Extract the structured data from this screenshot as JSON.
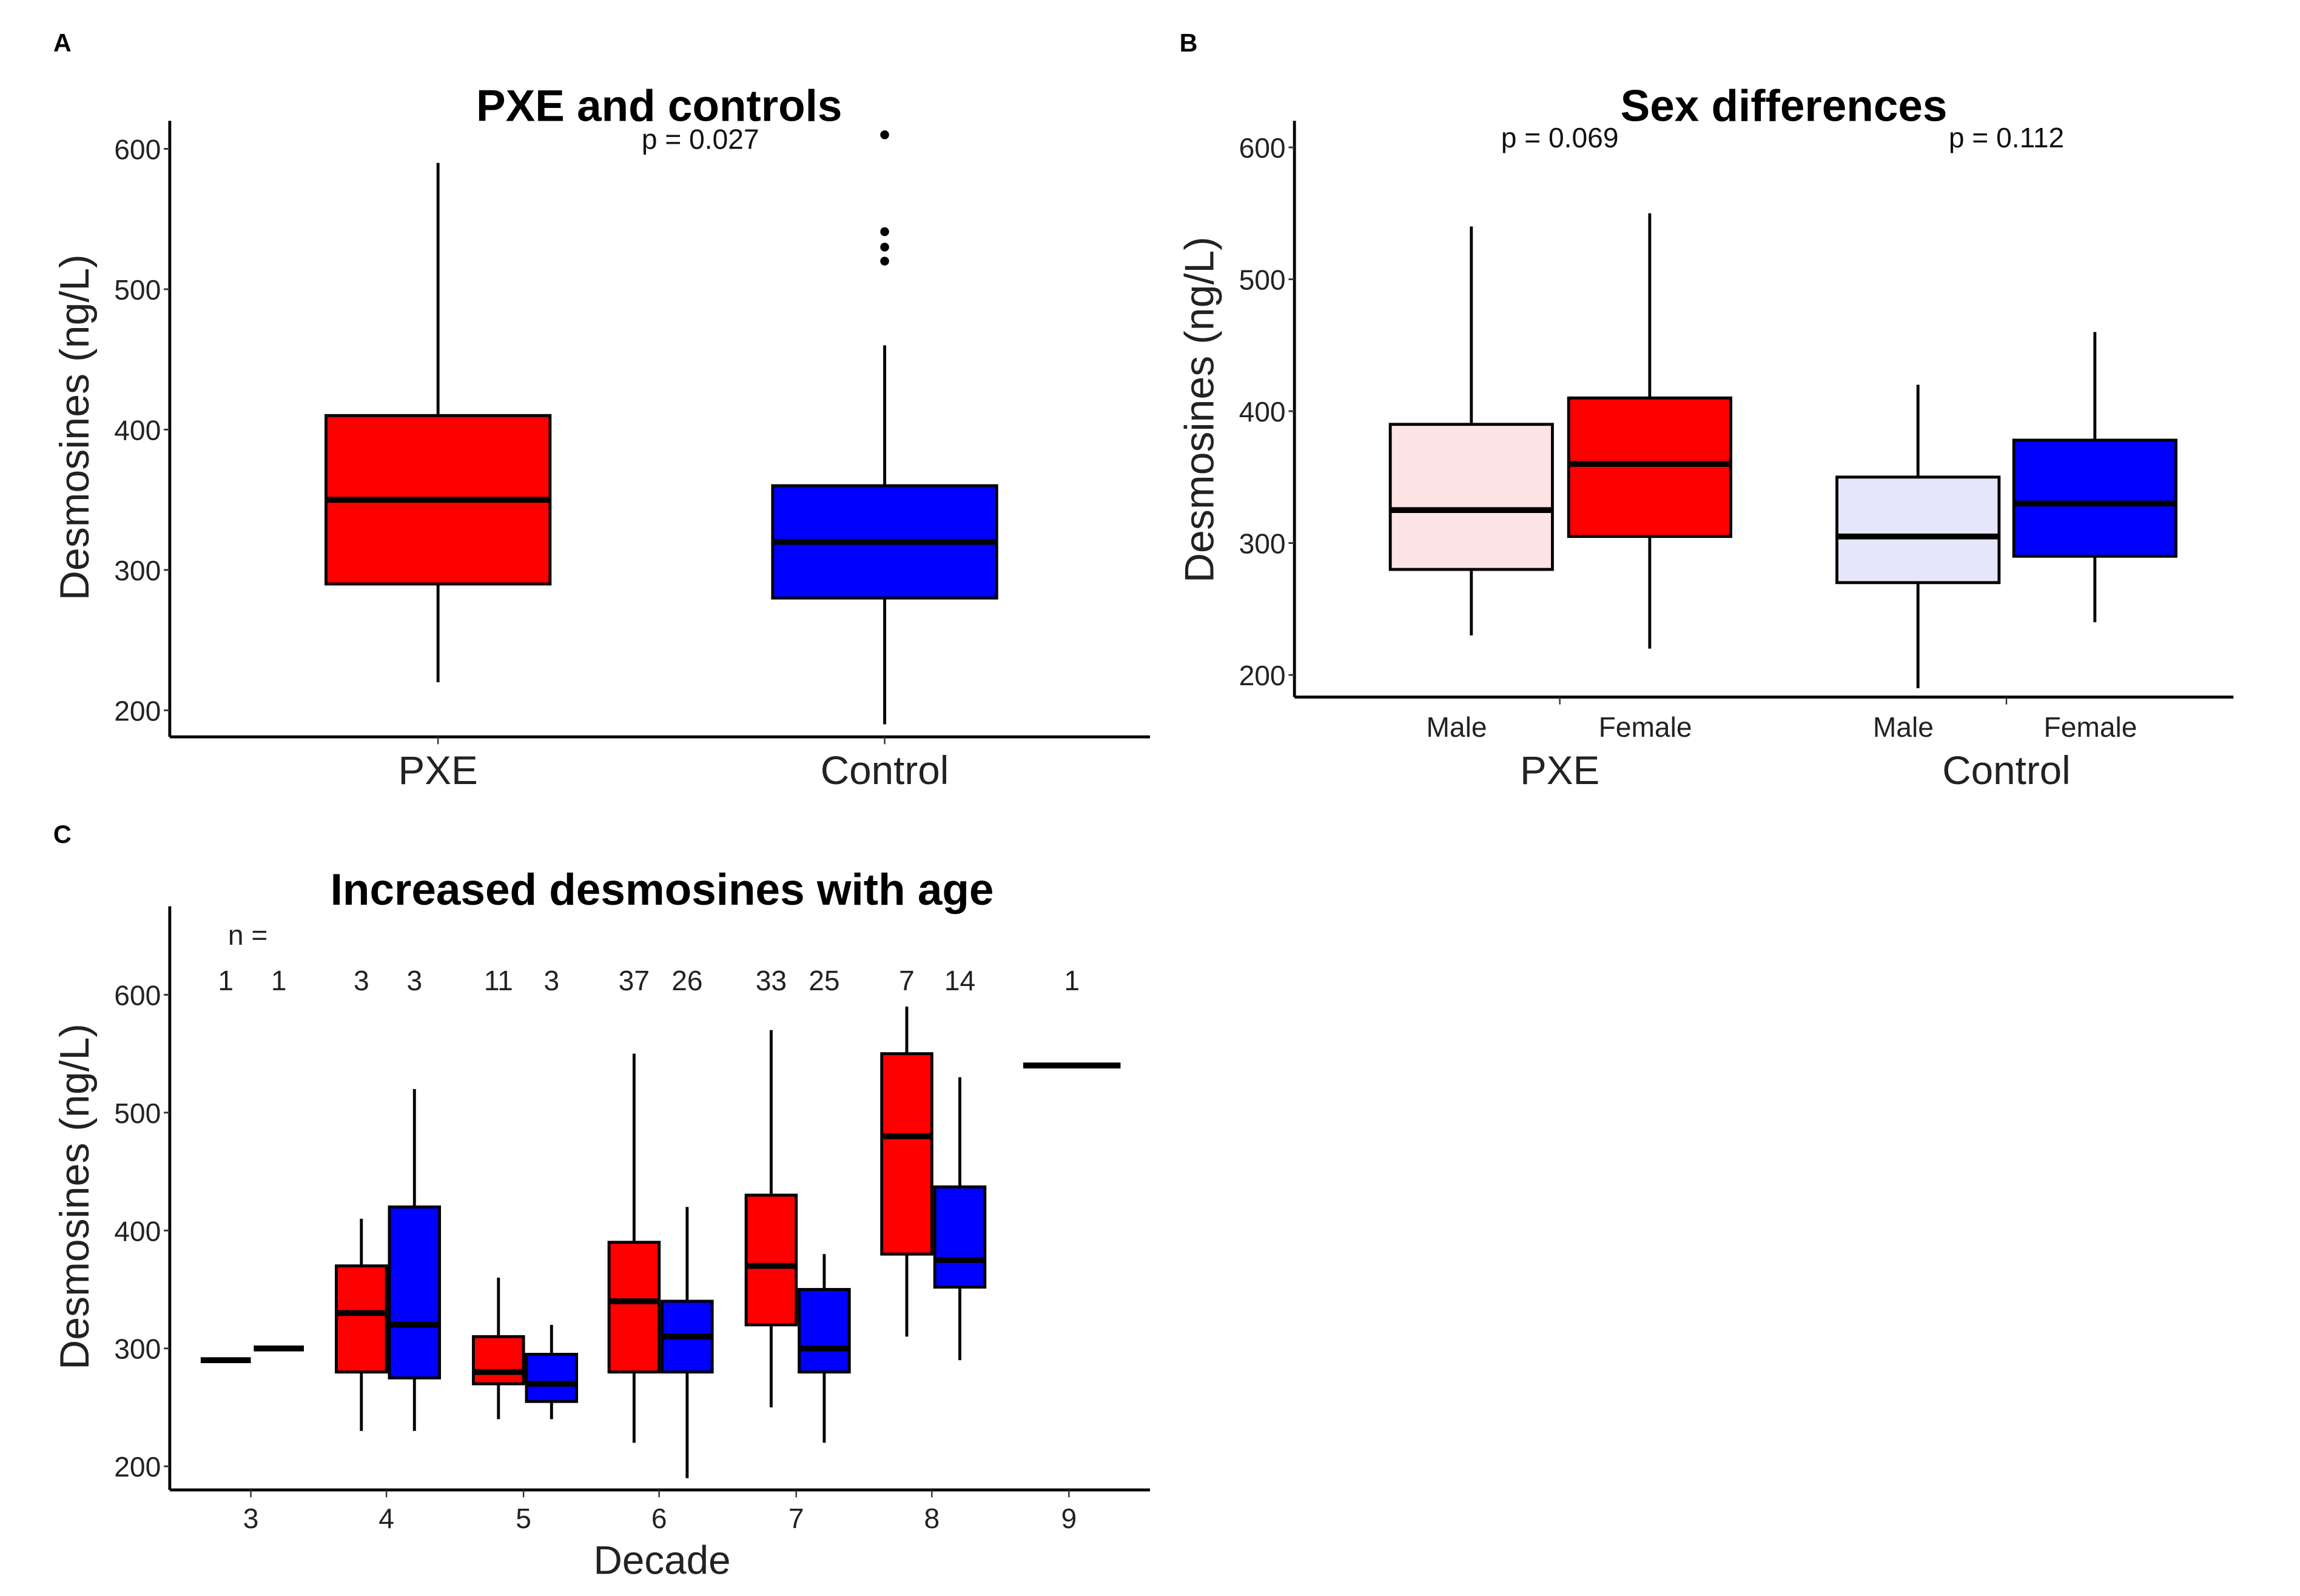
{
  "chart_data": [
    {
      "panel": "A",
      "type": "box",
      "title": "PXE and controls",
      "ylabel": "Desmosines (ng/L)",
      "xlabel": "",
      "ylim": [
        180,
        620
      ],
      "yticks": [
        "200",
        "300",
        "400",
        "500",
        "600"
      ],
      "annotation": "p = 0.027",
      "categories": [
        "PXE",
        "Control"
      ],
      "boxes": [
        {
          "category": "PXE",
          "min": 220,
          "q1": 290,
          "median": 350,
          "q3": 410,
          "max": 590,
          "outliers": [],
          "color": "#FF0000"
        },
        {
          "category": "Control",
          "min": 190,
          "q1": 280,
          "median": 320,
          "q3": 360,
          "max": 460,
          "outliers": [
            520,
            530,
            541,
            610
          ],
          "color": "#0000FF"
        }
      ]
    },
    {
      "panel": "B",
      "type": "box",
      "title": "Sex differences",
      "ylabel": "Desmosines (ng/L)",
      "ylim": [
        180,
        620
      ],
      "yticks": [
        "200",
        "300",
        "400",
        "500",
        "600"
      ],
      "groups": [
        "PXE",
        "Control"
      ],
      "annotations": [
        "p = 0.069",
        "p = 0.112"
      ],
      "boxes": [
        {
          "group": "PXE",
          "sex": "Male",
          "min": 230,
          "q1": 280,
          "median": 325,
          "q3": 390,
          "max": 540,
          "color": "#FFE4E6"
        },
        {
          "group": "PXE",
          "sex": "Female",
          "min": 220,
          "q1": 305,
          "median": 360,
          "q3": 410,
          "max": 550,
          "color": "#FF0000"
        },
        {
          "group": "Control",
          "sex": "Male",
          "min": 190,
          "q1": 270,
          "median": 305,
          "q3": 350,
          "max": 420,
          "color": "#E6E6FA"
        },
        {
          "group": "Control",
          "sex": "Female",
          "min": 240,
          "q1": 290,
          "median": 330,
          "q3": 378,
          "max": 460,
          "color": "#0000FF"
        }
      ]
    },
    {
      "panel": "C",
      "type": "box",
      "title": "Increased desmosines with age",
      "ylabel": "Desmosines (ng/L)",
      "xlabel": "Decade",
      "ylim": [
        180,
        670
      ],
      "yticks": [
        "200",
        "300",
        "400",
        "500",
        "600"
      ],
      "n_label": "n =",
      "decades": [
        "3",
        "4",
        "5",
        "6",
        "7",
        "8",
        "9"
      ],
      "boxes": [
        {
          "decade": "3",
          "group": "PXE",
          "n": "1",
          "min": 290,
          "q1": 290,
          "median": 290,
          "q3": 290,
          "max": 290,
          "color": "#FF0000"
        },
        {
          "decade": "3",
          "group": "Control",
          "n": "1",
          "min": 300,
          "q1": 300,
          "median": 300,
          "q3": 300,
          "max": 300,
          "color": "#0000FF"
        },
        {
          "decade": "4",
          "group": "PXE",
          "n": "3",
          "min": 230,
          "q1": 280,
          "median": 330,
          "q3": 370,
          "max": 410,
          "color": "#FF0000"
        },
        {
          "decade": "4",
          "group": "Control",
          "n": "3",
          "min": 230,
          "q1": 275,
          "median": 320,
          "q3": 420,
          "max": 520,
          "color": "#0000FF"
        },
        {
          "decade": "5",
          "group": "PXE",
          "n": "11",
          "min": 240,
          "q1": 270,
          "median": 280,
          "q3": 310,
          "max": 360,
          "color": "#FF0000"
        },
        {
          "decade": "5",
          "group": "Control",
          "n": "3",
          "min": 240,
          "q1": 255,
          "median": 270,
          "q3": 295,
          "max": 320,
          "color": "#0000FF"
        },
        {
          "decade": "6",
          "group": "PXE",
          "n": "37",
          "min": 220,
          "q1": 280,
          "median": 340,
          "q3": 390,
          "max": 550,
          "color": "#FF0000"
        },
        {
          "decade": "6",
          "group": "Control",
          "n": "26",
          "min": 190,
          "q1": 280,
          "median": 310,
          "q3": 340,
          "max": 420,
          "color": "#0000FF"
        },
        {
          "decade": "7",
          "group": "PXE",
          "n": "33",
          "min": 250,
          "q1": 320,
          "median": 370,
          "q3": 430,
          "max": 570,
          "color": "#FF0000"
        },
        {
          "decade": "7",
          "group": "Control",
          "n": "25",
          "min": 220,
          "q1": 280,
          "median": 300,
          "q3": 350,
          "max": 380,
          "color": "#0000FF"
        },
        {
          "decade": "8",
          "group": "PXE",
          "n": "7",
          "min": 310,
          "q1": 380,
          "median": 480,
          "q3": 550,
          "max": 590,
          "color": "#FF0000"
        },
        {
          "decade": "8",
          "group": "Control",
          "n": "14",
          "min": 290,
          "q1": 352,
          "median": 375,
          "q3": 437,
          "max": 530,
          "color": "#0000FF"
        },
        {
          "decade": "9",
          "group": "single",
          "n": "1",
          "min": 540,
          "q1": 540,
          "median": 540,
          "q3": 540,
          "max": 540,
          "color": "#FF0000"
        }
      ]
    }
  ]
}
